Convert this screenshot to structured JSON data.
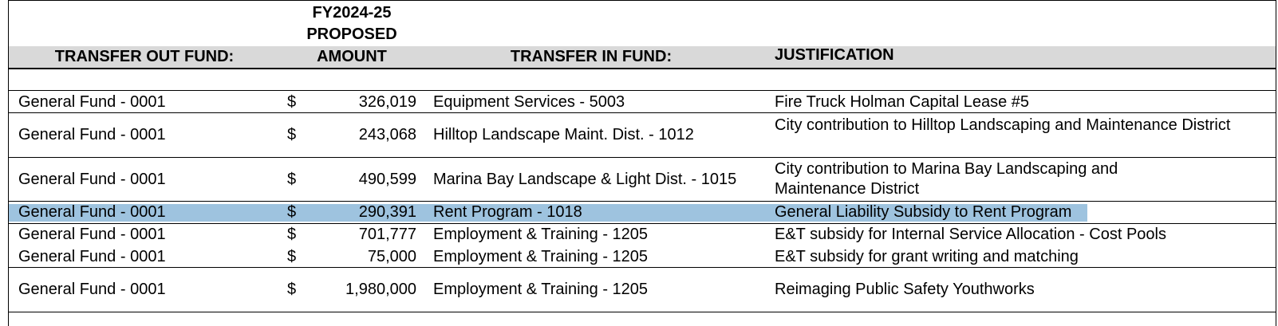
{
  "headers": {
    "transfer_out": "TRANSFER OUT FUND:",
    "amount_line1": "FY2024-25",
    "amount_line2": "PROPOSED",
    "amount_line3": "AMOUNT",
    "transfer_in": "TRANSFER IN FUND:",
    "justification": "JUSTIFICATION"
  },
  "highlight_color": "#9ec3df",
  "rows": [
    {
      "out": "General Fund - 0001",
      "dollar": "$",
      "amount": "326,019",
      "in": "Equipment Services - 5003",
      "justification": "Fire Truck Holman Capital Lease #5"
    },
    {
      "out": "General Fund - 0001",
      "dollar": "$",
      "amount": "243,068",
      "in": "Hilltop Landscape Maint. Dist. - 1012",
      "justification": "City contribution to Hilltop Landscaping and Maintenance District"
    },
    {
      "out": "General Fund - 0001",
      "dollar": "$",
      "amount": "490,599",
      "in": "Marina Bay Landscape & Light Dist. - 1015",
      "justification": "City contribution to Marina Bay Landscaping and Maintenance District"
    },
    {
      "out": "General Fund - 0001",
      "dollar": "$",
      "amount": "290,391",
      "in": "Rent Program - 1018",
      "justification": "General Liability Subsidy to Rent Program",
      "selected": true
    },
    {
      "out": "General Fund - 0001",
      "dollar": "$",
      "amount": "701,777",
      "in": "Employment & Training - 1205",
      "justification": "E&T subsidy for Internal Service Allocation - Cost Pools"
    },
    {
      "out": "General Fund - 0001",
      "dollar": "$",
      "amount": "75,000",
      "in": "Employment & Training - 1205",
      "justification": "E&T subsidy for grant writing and matching"
    },
    {
      "out": "General Fund - 0001",
      "dollar": "$",
      "amount": "1,980,000",
      "in": "Employment & Training - 1205",
      "justification": "Reimaging Public Safety Youthworks"
    }
  ]
}
